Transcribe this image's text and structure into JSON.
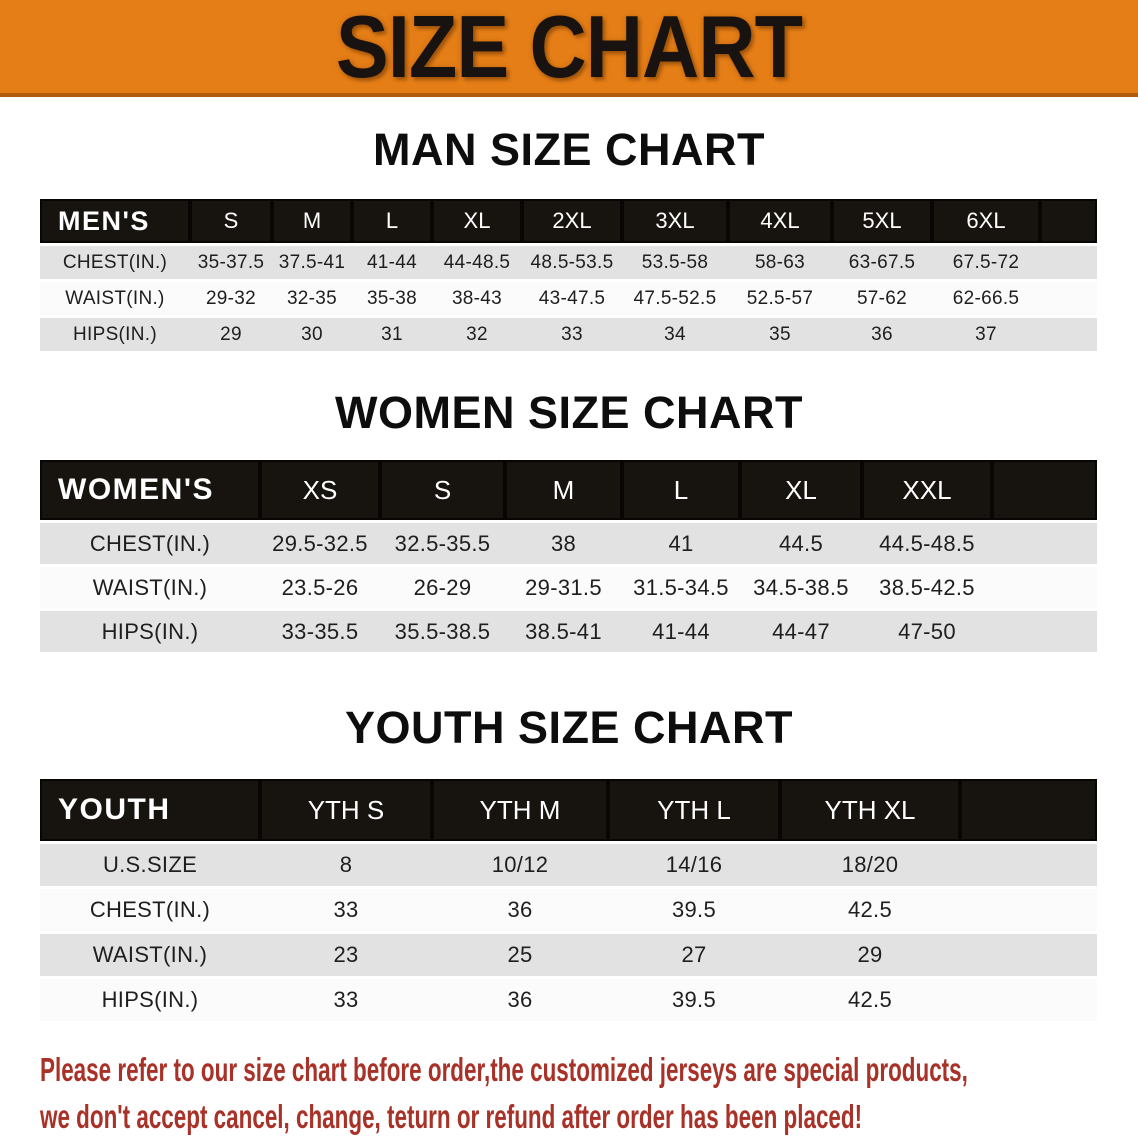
{
  "banner": {
    "title": "SIZE CHART",
    "bg_color": "#e57e16",
    "text_color": "#181310"
  },
  "sections": [
    {
      "heading": "MAN SIZE CHART",
      "table": {
        "header_label": "MEN'S",
        "header_bg_color": "#17130f",
        "columns": [
          "S",
          "M",
          "L",
          "XL",
          "2XL",
          "3XL",
          "4XL",
          "5XL",
          "6XL"
        ],
        "rows": [
          {
            "label": "CHEST(IN.)",
            "values": [
              "35-37.5",
              "37.5-41",
              "41-44",
              "44-48.5",
              "48.5-53.5",
              "53.5-58",
              "58-63",
              "63-67.5",
              "67.5-72"
            ]
          },
          {
            "label": "WAIST(IN.)",
            "values": [
              "29-32",
              "32-35",
              "35-38",
              "38-43",
              "43-47.5",
              "47.5-52.5",
              "52.5-57",
              "57-62",
              "62-66.5"
            ]
          },
          {
            "label": "HIPS(IN.)",
            "values": [
              "29",
              "30",
              "31",
              "32",
              "33",
              "34",
              "35",
              "36",
              "37"
            ]
          }
        ]
      }
    },
    {
      "heading": "WOMEN SIZE CHART",
      "table": {
        "header_label": "WOMEN'S",
        "header_bg_color": "#17130f",
        "columns": [
          "XS",
          "S",
          "M",
          "L",
          "XL",
          "XXL"
        ],
        "rows": [
          {
            "label": "CHEST(IN.)",
            "values": [
              "29.5-32.5",
              "32.5-35.5",
              "38",
              "41",
              "44.5",
              "44.5-48.5"
            ]
          },
          {
            "label": "WAIST(IN.)",
            "values": [
              "23.5-26",
              "26-29",
              "29-31.5",
              "31.5-34.5",
              "34.5-38.5",
              "38.5-42.5"
            ]
          },
          {
            "label": "HIPS(IN.)",
            "values": [
              "33-35.5",
              "35.5-38.5",
              "38.5-41",
              "41-44",
              "44-47",
              "47-50"
            ]
          }
        ]
      }
    },
    {
      "heading": "YOUTH SIZE CHART",
      "table": {
        "header_label": "YOUTH",
        "header_bg_color": "#17130f",
        "columns": [
          "YTH S",
          "YTH M",
          "YTH L",
          "YTH XL"
        ],
        "rows": [
          {
            "label": "U.S.SIZE",
            "values": [
              "8",
              "10/12",
              "14/16",
              "18/20"
            ]
          },
          {
            "label": "CHEST(IN.)",
            "values": [
              "33",
              "36",
              "39.5",
              "42.5"
            ]
          },
          {
            "label": "WAIST(IN.)",
            "values": [
              "23",
              "25",
              "27",
              "29"
            ]
          },
          {
            "label": "HIPS(IN.)",
            "values": [
              "33",
              "36",
              "39.5",
              "42.5"
            ]
          }
        ]
      }
    }
  ],
  "disclaimer": {
    "line1": "Please refer to our size chart before order,the customized jerseys are special products,",
    "line2": "we don't accept cancel, change, teturn or refund after order has been placed!",
    "color": "#a93228"
  },
  "row_band_colors": {
    "gray": "#e2e2e2",
    "white": "#fbfbfb"
  }
}
